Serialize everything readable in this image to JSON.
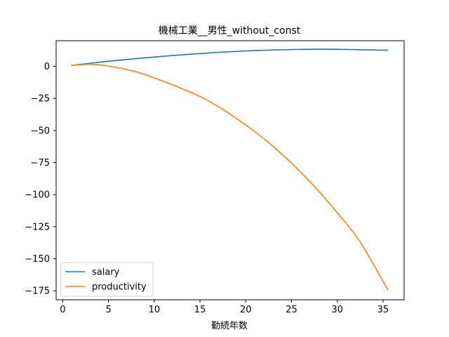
{
  "chart_data": {
    "type": "line",
    "title": "機械工業__男性_without_const",
    "xlabel": "勤続年数",
    "ylabel": "",
    "xlim": [
      -0.72,
      37.3
    ],
    "ylim": [
      -182,
      20
    ],
    "xticks": [
      0,
      5,
      10,
      15,
      20,
      25,
      30,
      35
    ],
    "yticks": [
      0,
      -25,
      -50,
      -75,
      -100,
      -125,
      -150,
      -175
    ],
    "legend_position": "lower-left",
    "grid": false,
    "series": [
      {
        "name": "salary",
        "color": "#1f77b4",
        "x": [
          1,
          5,
          10,
          15,
          20,
          25,
          29,
          35.5
        ],
        "y": [
          0.8,
          4.0,
          7.3,
          10.0,
          12.0,
          13.1,
          13.4,
          12.6
        ]
      },
      {
        "name": "productivity",
        "color": "#ff7f0e",
        "x": [
          1,
          3,
          5,
          8,
          10,
          12.5,
          15,
          17.5,
          20,
          22.5,
          25,
          27.5,
          30,
          32.5,
          35.5
        ],
        "y": [
          0.8,
          1.6,
          0.3,
          -4.2,
          -9.0,
          -15.8,
          -23.5,
          -33.6,
          -45.7,
          -59.5,
          -75.5,
          -93.7,
          -114.2,
          -137,
          -174
        ]
      }
    ]
  }
}
